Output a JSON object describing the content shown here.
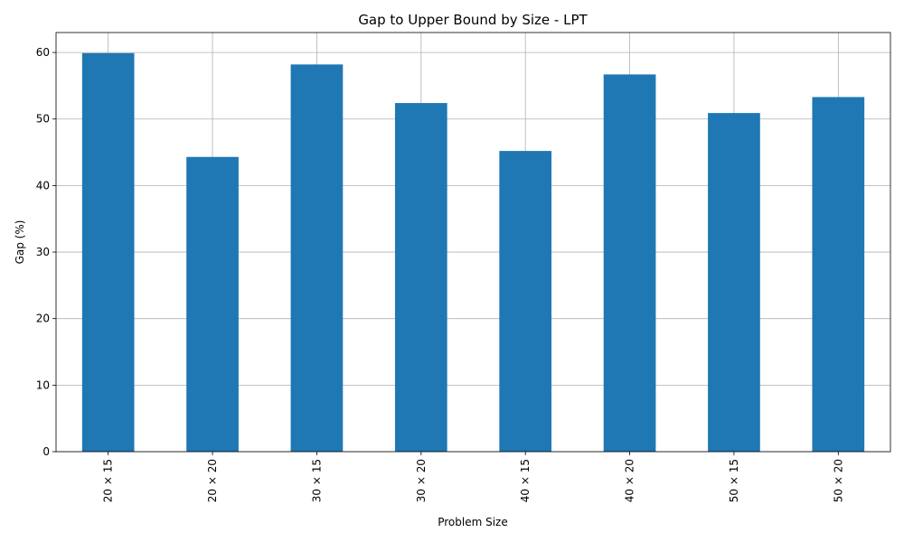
{
  "chart_data": {
    "type": "bar",
    "title": "Gap to Upper Bound by Size - LPT",
    "xlabel": "Problem Size",
    "ylabel": "Gap (%)",
    "categories": [
      "20 × 15",
      "20 × 20",
      "30 × 15",
      "30 × 20",
      "40 × 15",
      "40 × 20",
      "50 × 15",
      "50 × 20"
    ],
    "values": [
      59.9,
      44.3,
      58.2,
      52.4,
      45.2,
      56.7,
      50.9,
      53.3
    ],
    "ylim": [
      0,
      63
    ],
    "yticks": [
      0,
      10,
      20,
      30,
      40,
      50,
      60
    ],
    "grid": true,
    "legend": "none",
    "bar_color": "#1f77b4"
  }
}
